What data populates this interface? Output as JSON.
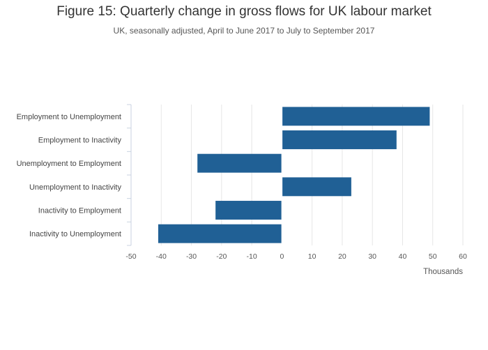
{
  "chart_data": {
    "type": "bar",
    "orientation": "horizontal",
    "title": "Figure 15: Quarterly change in gross flows for UK labour market",
    "subtitle": "UK, seasonally adjusted, April to June 2017 to July to September 2017",
    "xlabel": "Thousands",
    "ylabel": "",
    "categories": [
      "Employment to Unemployment",
      "Employment to Inactivity",
      "Unemployment to Employment",
      "Unemployment to Inactivity",
      "Inactivity to Employment",
      "Inactivity to Unemployment"
    ],
    "values": [
      49,
      38,
      -28,
      23,
      -22,
      -41
    ],
    "xlim": [
      -50,
      60
    ],
    "xticks": [
      -50,
      -40,
      -30,
      -20,
      -10,
      0,
      10,
      20,
      30,
      40,
      50,
      60
    ],
    "grid": true,
    "bar_color": "#206095"
  }
}
